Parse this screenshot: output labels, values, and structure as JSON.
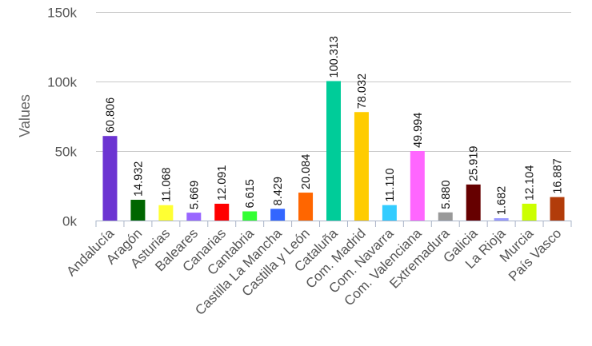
{
  "chart_data": {
    "type": "bar",
    "title": "",
    "xlabel": "",
    "ylabel": "Values",
    "ylim": [
      0,
      150000
    ],
    "yticks": [
      0,
      50000,
      100000,
      150000
    ],
    "ytick_labels": [
      "0k",
      "50k",
      "100k",
      "150k"
    ],
    "grid": true,
    "legend": "none",
    "categories": [
      "Andalucía",
      "Aragón",
      "Asturias",
      "Baleares",
      "Canarias",
      "Cantabria",
      "Castilla La Mancha",
      "Castilla y León",
      "Cataluña",
      "Com. Madrid",
      "Com. Navarra",
      "Com. Valenciana",
      "Extremadura",
      "Galicia",
      "La Rioja",
      "Murcia",
      "País Vasco"
    ],
    "values": [
      60806,
      14932,
      11068,
      5669,
      12091,
      6615,
      8429,
      20084,
      100313,
      78032,
      11110,
      49994,
      5880,
      25919,
      1682,
      12104,
      16887
    ],
    "data_labels": [
      "60.806",
      "14.932",
      "11.068",
      "5.669",
      "12.091",
      "6.615",
      "8.429",
      "20.084",
      "100.313",
      "78.032",
      "11.110",
      "49.994",
      "5.880",
      "25.919",
      "1.682",
      "12.104",
      "16.887"
    ],
    "colors": [
      "#6c34d2",
      "#006600",
      "#ffff33",
      "#9966ff",
      "#ff0000",
      "#33ff33",
      "#3366ff",
      "#ff6600",
      "#00cc99",
      "#ffcc00",
      "#33ccff",
      "#ff66ff",
      "#999999",
      "#660000",
      "#9999ff",
      "#ccff00",
      "#b23c0a"
    ]
  }
}
